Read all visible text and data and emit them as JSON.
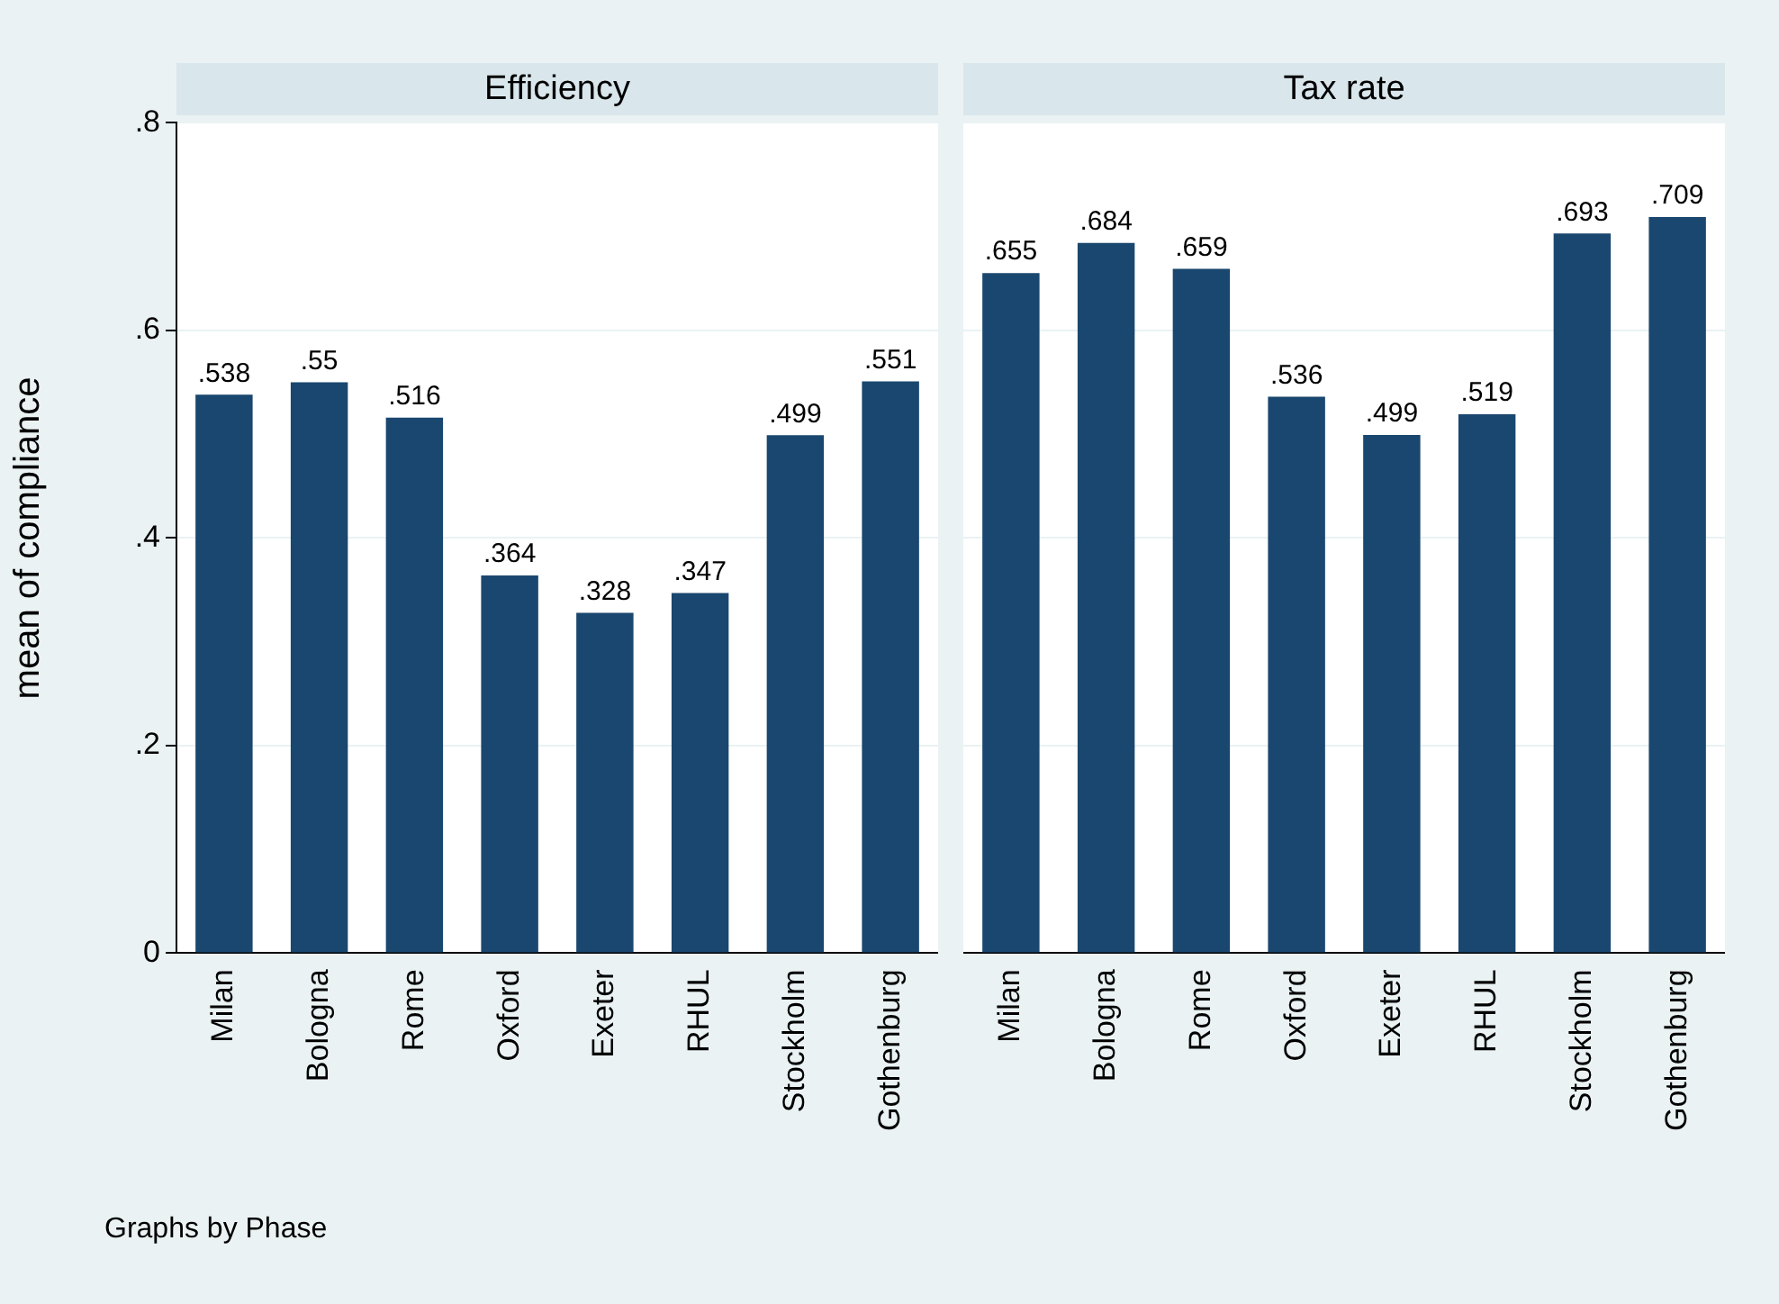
{
  "chart_data": [
    {
      "type": "bar",
      "title": "Efficiency",
      "ylabel": "mean of compliance",
      "categories": [
        "Milan",
        "Bologna",
        "Rome",
        "Oxford",
        "Exeter",
        "RHUL",
        "Stockholm",
        "Gothenburg"
      ],
      "values": [
        0.538,
        0.55,
        0.516,
        0.364,
        0.328,
        0.347,
        0.499,
        0.551
      ],
      "value_labels": [
        ".538",
        ".55",
        ".516",
        ".364",
        ".328",
        ".347",
        ".499",
        ".551"
      ],
      "color": "#1a476f",
      "ylim": [
        0,
        0.8
      ],
      "yticks": [
        0,
        {
          "value": 0.2,
          "label": ".2"
        },
        {
          "value": 0.4,
          "label": ".4"
        },
        {
          "value": 0.6,
          "label": ".6"
        },
        {
          "value": 0.8,
          "label": ".8"
        }
      ],
      "grid": "y",
      "annotations": [
        "Graphs by Phase"
      ]
    },
    {
      "type": "bar",
      "title": "Tax rate",
      "categories": [
        "Milan",
        "Bologna",
        "Rome",
        "Oxford",
        "Exeter",
        "RHUL",
        "Stockholm",
        "Gothenburg"
      ],
      "values": [
        0.655,
        0.684,
        0.659,
        0.536,
        0.499,
        0.519,
        0.693,
        0.709
      ],
      "value_labels": [
        ".655",
        ".684",
        ".659",
        ".536",
        ".499",
        ".519",
        ".693",
        ".709"
      ],
      "color": "#1a476f",
      "ylim": [
        0,
        0.8
      ],
      "yticks": [
        {
          "value": 0,
          "label": null
        },
        {
          "value": 0.2,
          "label": null
        },
        {
          "value": 0.4,
          "label": null
        },
        {
          "value": 0.6,
          "label": null
        },
        {
          "value": 0.8,
          "label": null
        }
      ],
      "grid": "y",
      "tick_labels": "x"
    }
  ]
}
